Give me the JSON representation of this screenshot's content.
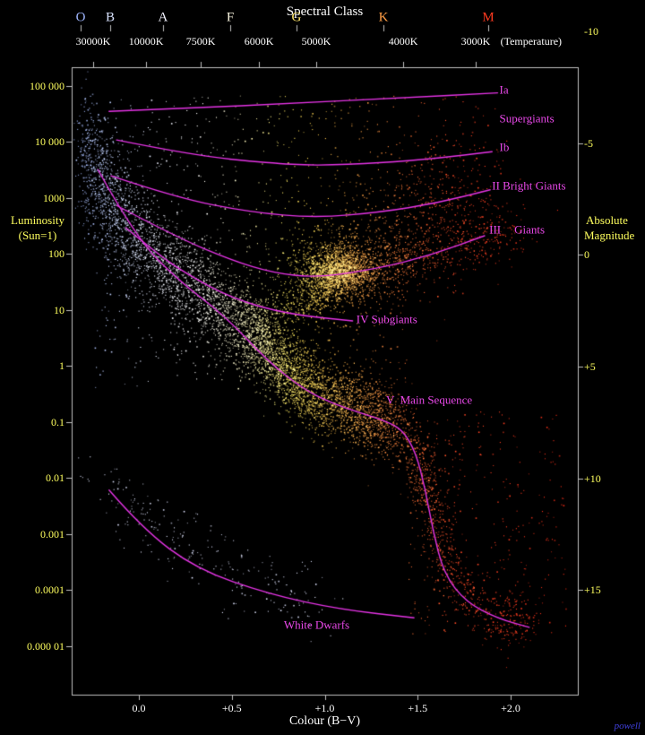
{
  "header": {
    "title": "Spectral Class",
    "spectral_classes": [
      {
        "label": "O",
        "color": "#9fb6ff",
        "bv": -0.313
      },
      {
        "label": "B",
        "color": "#d8e2ff",
        "bv": -0.154
      },
      {
        "label": "A",
        "color": "#f4f4ff",
        "bv": 0.13
      },
      {
        "label": "F",
        "color": "#fdf8e2",
        "bv": 0.492
      },
      {
        "label": "G",
        "color": "#ffe66a",
        "bv": 0.848
      },
      {
        "label": "K",
        "color": "#ff9d45",
        "bv": 1.316
      },
      {
        "label": "M",
        "color": "#ff3a20",
        "bv": 1.88
      }
    ],
    "temperatures": [
      {
        "label": "30000K",
        "bv": -0.246
      },
      {
        "label": "10000K",
        "bv": 0.039
      },
      {
        "label": "7500K",
        "bv": 0.333
      },
      {
        "label": "6000K",
        "bv": 0.646
      },
      {
        "label": "5000K",
        "bv": 0.954
      },
      {
        "label": "4000K",
        "bv": 1.422
      },
      {
        "label": "3000K",
        "bv": 1.812
      }
    ],
    "temperature_note": {
      "label": "(Temperature)",
      "bv": 2.11
    }
  },
  "left_axis": {
    "title_lines": [
      "Luminosity",
      "(Sun=1)"
    ],
    "ticks": [
      {
        "label": "100 000",
        "luminosity": 100000
      },
      {
        "label": "10 000",
        "luminosity": 10000
      },
      {
        "label": "1000",
        "luminosity": 1000
      },
      {
        "label": "100",
        "luminosity": 100
      },
      {
        "label": "10",
        "luminosity": 10
      },
      {
        "label": "1",
        "luminosity": 1
      },
      {
        "label": "0.1",
        "luminosity": 0.1
      },
      {
        "label": "0.01",
        "luminosity": 0.01
      },
      {
        "label": "0.001",
        "luminosity": 0.001
      },
      {
        "label": "0.0001",
        "luminosity": 0.0001
      },
      {
        "label": "0.000 01",
        "luminosity": 1e-05
      }
    ]
  },
  "right_axis": {
    "title_lines": [
      "Absolute",
      "Magnitude"
    ],
    "ticks": [
      {
        "label": "-10",
        "magnitude": -10
      },
      {
        "label": "-5",
        "magnitude": -5
      },
      {
        "label": "0",
        "magnitude": 0
      },
      {
        "label": "+5",
        "magnitude": 5
      },
      {
        "label": "+10",
        "magnitude": 10
      },
      {
        "label": "+15",
        "magnitude": 15
      }
    ]
  },
  "bottom_axis": {
    "title": "Colour (B−V)",
    "ticks": [
      {
        "label": "0.0",
        "bv": 0.0
      },
      {
        "label": "+0.5",
        "bv": 0.5
      },
      {
        "label": "+1.0",
        "bv": 1.0
      },
      {
        "label": "+1.5",
        "bv": 1.5
      },
      {
        "label": "+2.0",
        "bv": 2.0
      }
    ]
  },
  "annotations": [
    {
      "text": "Ia",
      "bv": 1.94,
      "logL": 4.93
    },
    {
      "text": "Supergiants",
      "bv": 1.94,
      "logL": 4.42
    },
    {
      "text": "Ib",
      "bv": 1.94,
      "logL": 3.9
    },
    {
      "text": "II Bright Giants",
      "bv": 1.9,
      "logL": 3.22
    },
    {
      "text": "III",
      "bv": 1.885,
      "logL": 2.44
    },
    {
      "text": "Giants",
      "bv": 2.02,
      "logL": 2.44
    },
    {
      "text": "IV Subgiants",
      "bv": 1.17,
      "logL": 0.83
    },
    {
      "text": "V  Main Sequence",
      "bv": 1.33,
      "logL": -0.6
    },
    {
      "text": "White Dwarfs",
      "bv": 0.78,
      "logL": -4.63
    }
  ],
  "watermark": {
    "text": "powell",
    "color": "#4040dd"
  },
  "colors": {
    "background": "#000000",
    "frame": "#bfbfbf",
    "axis_number_text": "#ffff5e",
    "plain_text": "#ffffff",
    "curve": "#e433e4",
    "annotation_text": "#e948e9"
  },
  "chart_data": {
    "type": "scatter",
    "xlabel": "Colour (B−V)",
    "ylabel": "Luminosity (Sun=1)",
    "y2label": "Absolute Magnitude",
    "x_range": [
      -0.36,
      2.36
    ],
    "y_log_range": [
      -5.4,
      5.35
    ],
    "x_ticks": [
      0,
      0.5,
      1.0,
      1.5,
      2.0
    ],
    "y_ticks_luminosity": [
      100000,
      10000,
      1000,
      100,
      10,
      1,
      0.1,
      0.01,
      0.001,
      0.0001,
      1e-05
    ],
    "y2_ticks_magnitude": [
      -10,
      -5,
      0,
      5,
      10,
      15
    ],
    "luminosity_class_curves": [
      {
        "name": "Ia",
        "points": [
          [
            -0.16,
            4.54
          ],
          [
            0.3,
            4.6
          ],
          [
            0.8,
            4.68
          ],
          [
            1.4,
            4.78
          ],
          [
            1.93,
            4.87
          ]
        ]
      },
      {
        "name": "Ib",
        "points": [
          [
            -0.12,
            4.03
          ],
          [
            0.3,
            3.75
          ],
          [
            0.7,
            3.62
          ],
          [
            0.95,
            3.57
          ],
          [
            1.3,
            3.62
          ],
          [
            1.6,
            3.7
          ],
          [
            1.9,
            3.82
          ]
        ]
      },
      {
        "name": "II",
        "points": [
          [
            -0.15,
            3.39
          ],
          [
            0.2,
            3.0
          ],
          [
            0.6,
            2.74
          ],
          [
            0.95,
            2.64
          ],
          [
            1.3,
            2.74
          ],
          [
            1.6,
            2.9
          ],
          [
            1.89,
            3.14
          ]
        ]
      },
      {
        "name": "III",
        "points": [
          [
            -0.12,
            2.86
          ],
          [
            0.2,
            2.3
          ],
          [
            0.5,
            1.88
          ],
          [
            0.72,
            1.66
          ],
          [
            0.95,
            1.57
          ],
          [
            1.28,
            1.73
          ],
          [
            1.57,
            1.97
          ],
          [
            1.86,
            2.32
          ]
        ]
      },
      {
        "name": "IV",
        "points": [
          [
            -0.07,
            2.46
          ],
          [
            0.1,
            2.0
          ],
          [
            0.25,
            1.65
          ],
          [
            0.5,
            1.2
          ],
          [
            0.8,
            0.92
          ],
          [
            1.15,
            0.8
          ]
        ]
      },
      {
        "name": "V",
        "points": [
          [
            -0.22,
            3.5
          ],
          [
            -0.02,
            2.3
          ],
          [
            0.22,
            1.5
          ],
          [
            0.46,
            0.9
          ],
          [
            0.7,
            0.06
          ],
          [
            0.89,
            -0.43
          ],
          [
            1.04,
            -0.67
          ],
          [
            1.18,
            -0.83
          ],
          [
            1.33,
            -0.99
          ],
          [
            1.42,
            -1.15
          ],
          [
            1.49,
            -1.55
          ],
          [
            1.54,
            -2.19
          ],
          [
            1.58,
            -2.91
          ],
          [
            1.64,
            -3.71
          ],
          [
            1.76,
            -4.22
          ],
          [
            1.93,
            -4.51
          ],
          [
            2.1,
            -4.67
          ]
        ]
      },
      {
        "name": "White Dwarfs",
        "points": [
          [
            -0.16,
            -2.22
          ],
          [
            0.02,
            -2.91
          ],
          [
            0.31,
            -3.63
          ],
          [
            0.7,
            -4.08
          ],
          [
            1.08,
            -4.35
          ],
          [
            1.48,
            -4.5
          ]
        ]
      }
    ],
    "star_clusters": [
      {
        "name": "main-sequence-OB",
        "kind": "band",
        "n": 950,
        "sigma_bv": 0.035,
        "sigma_logL": 0.55,
        "spine": [
          [
            -0.3,
            3.8
          ],
          [
            -0.22,
            3.3
          ],
          [
            -0.12,
            2.7
          ],
          [
            0.0,
            2.25
          ]
        ]
      },
      {
        "name": "main-sequence-AF",
        "kind": "band",
        "n": 1500,
        "sigma_bv": 0.035,
        "sigma_logL": 0.42,
        "spine": [
          [
            0.0,
            2.25
          ],
          [
            0.15,
            1.8
          ],
          [
            0.3,
            1.4
          ],
          [
            0.45,
            0.95
          ],
          [
            0.6,
            0.65
          ]
        ]
      },
      {
        "name": "main-sequence-GK",
        "kind": "band",
        "n": 2700,
        "sigma_bv": 0.045,
        "sigma_logL": 0.33,
        "spine": [
          [
            0.6,
            0.65
          ],
          [
            0.7,
            0.3
          ],
          [
            0.8,
            -0.1
          ],
          [
            0.9,
            -0.45
          ],
          [
            1.05,
            -0.65
          ],
          [
            1.2,
            -0.82
          ],
          [
            1.35,
            -1.0
          ]
        ]
      },
      {
        "name": "main-sequence-M",
        "kind": "band",
        "n": 900,
        "sigma_bv": 0.05,
        "sigma_logL": 0.3,
        "spine": [
          [
            1.35,
            -1.0
          ],
          [
            1.43,
            -1.2
          ],
          [
            1.5,
            -1.6
          ],
          [
            1.55,
            -2.2
          ],
          [
            1.6,
            -2.9
          ],
          [
            1.65,
            -3.6
          ],
          [
            1.78,
            -4.2
          ],
          [
            1.95,
            -4.5
          ],
          [
            2.1,
            -4.65
          ]
        ]
      },
      {
        "name": "giant-clump-core",
        "kind": "blob",
        "n": 1600,
        "center": [
          1.08,
          1.7
        ],
        "sigma_bv": 0.1,
        "sigma_logL": 0.22
      },
      {
        "name": "giant-clump-halo",
        "kind": "blob",
        "n": 700,
        "center": [
          1.12,
          1.78
        ],
        "sigma_bv": 0.22,
        "sigma_logL": 0.42
      },
      {
        "name": "red-giant-branch",
        "kind": "band",
        "n": 420,
        "sigma_bv": 0.07,
        "sigma_logL": 0.24,
        "spine": [
          [
            1.3,
            1.85
          ],
          [
            1.55,
            2.05
          ],
          [
            1.8,
            2.25
          ],
          [
            2.0,
            2.4
          ]
        ]
      },
      {
        "name": "subgiant-branch",
        "kind": "band",
        "n": 350,
        "sigma_bv": 0.06,
        "sigma_logL": 0.2,
        "spine": [
          [
            0.62,
            0.8
          ],
          [
            0.8,
            1.05
          ],
          [
            0.95,
            1.3
          ],
          [
            1.05,
            1.5
          ]
        ]
      },
      {
        "name": "supergiant-field",
        "kind": "uniform",
        "n": 300,
        "bv_range": [
          -0.25,
          1.95
        ],
        "logL_range": [
          3.3,
          4.85
        ]
      },
      {
        "name": "bright-giant-cloud",
        "kind": "blob",
        "n": 400,
        "center": [
          1.6,
          2.9
        ],
        "sigma_bv": 0.2,
        "sigma_logL": 0.5
      },
      {
        "name": "hertzsprung-gap-field",
        "kind": "uniform",
        "n": 550,
        "bv_range": [
          -0.25,
          1.45
        ],
        "logL_range": [
          -0.4,
          3.3
        ]
      },
      {
        "name": "red-dwarf-field",
        "kind": "uniform",
        "n": 300,
        "bv_range": [
          1.45,
          2.3
        ],
        "logL_range": [
          -4.8,
          -0.8
        ]
      },
      {
        "name": "white-dwarfs",
        "kind": "band",
        "n": 240,
        "sigma_bv": 0.09,
        "sigma_logL": 0.28,
        "color": "#dfe4ff",
        "spine": [
          [
            -0.18,
            -1.95
          ],
          [
            0.0,
            -2.55
          ],
          [
            0.2,
            -3.1
          ],
          [
            0.45,
            -3.6
          ],
          [
            0.7,
            -3.95
          ],
          [
            0.95,
            -4.3
          ]
        ]
      }
    ],
    "color_stops": [
      {
        "bv": -0.35,
        "color": "#9cb5ff"
      },
      {
        "bv": -0.1,
        "color": "#cbd8ff"
      },
      {
        "bv": 0.1,
        "color": "#edf0ff"
      },
      {
        "bv": 0.3,
        "color": "#ffffff"
      },
      {
        "bv": 0.5,
        "color": "#fff9d2"
      },
      {
        "bv": 0.65,
        "color": "#fff59e"
      },
      {
        "bv": 0.8,
        "color": "#ffe85c"
      },
      {
        "bv": 0.95,
        "color": "#ffd24f"
      },
      {
        "bv": 1.1,
        "color": "#ffb347"
      },
      {
        "bv": 1.3,
        "color": "#ff8f3e"
      },
      {
        "bv": 1.5,
        "color": "#ff6830"
      },
      {
        "bv": 1.7,
        "color": "#ff4724"
      },
      {
        "bv": 2.3,
        "color": "#fb2a14"
      }
    ]
  }
}
